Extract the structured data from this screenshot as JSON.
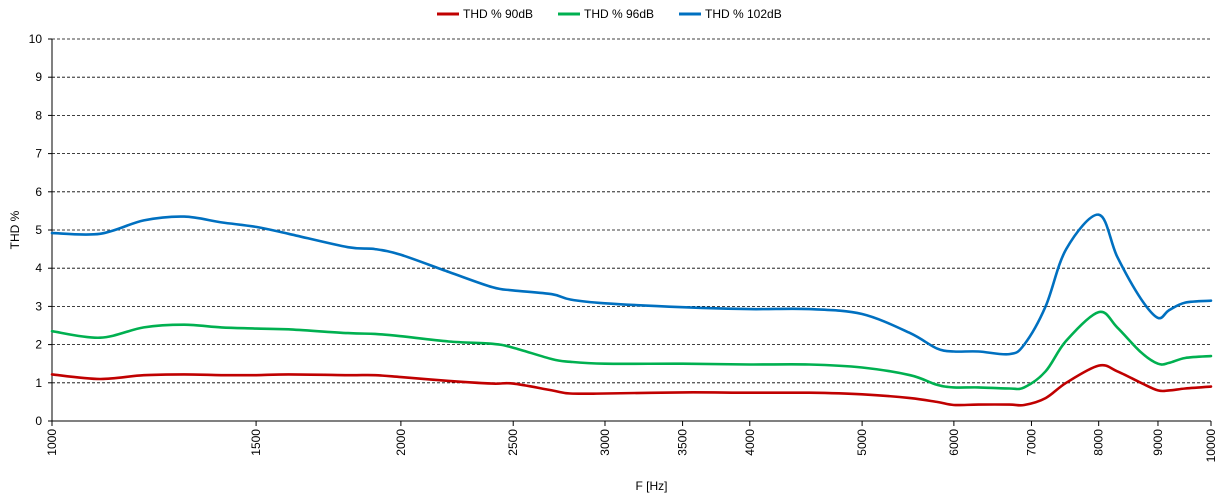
{
  "chart_data": {
    "type": "line",
    "xlabel": "F [Hz]",
    "ylabel": "THD %",
    "x_scale": "log",
    "xlim": [
      1000,
      10000
    ],
    "ylim": [
      0,
      10
    ],
    "grid": true,
    "legend_position": "top-center",
    "x_ticks": [
      1000,
      1500,
      2000,
      2500,
      3000,
      3500,
      4000,
      5000,
      6000,
      7000,
      8000,
      9000,
      10000
    ],
    "y_ticks": [
      0,
      1,
      2,
      3,
      4,
      5,
      6,
      7,
      8,
      9,
      10
    ],
    "series": [
      {
        "name": "THD % 90dB",
        "color": "#c00000",
        "x": [
          1000,
          1100,
          1200,
          1300,
          1400,
          1500,
          1600,
          1800,
          1900,
          2000,
          2200,
          2400,
          2500,
          2700,
          2800,
          3000,
          3500,
          4000,
          4500,
          5000,
          5500,
          5800,
          6000,
          6300,
          6700,
          6900,
          7200,
          7500,
          8000,
          8300,
          8700,
          9000,
          9200,
          9500,
          10000
        ],
        "y": [
          1.22,
          1.1,
          1.2,
          1.22,
          1.2,
          1.2,
          1.22,
          1.2,
          1.2,
          1.15,
          1.05,
          0.98,
          0.98,
          0.8,
          0.72,
          0.72,
          0.75,
          0.74,
          0.74,
          0.7,
          0.6,
          0.5,
          0.42,
          0.43,
          0.43,
          0.42,
          0.6,
          1.0,
          1.45,
          1.3,
          1.0,
          0.8,
          0.8,
          0.85,
          0.9
        ]
      },
      {
        "name": "THD % 96dB",
        "color": "#00b050",
        "x": [
          1000,
          1100,
          1200,
          1300,
          1400,
          1500,
          1600,
          1800,
          1900,
          2000,
          2200,
          2400,
          2500,
          2700,
          2800,
          3000,
          3500,
          4000,
          4500,
          5000,
          5500,
          5800,
          6000,
          6300,
          6700,
          6900,
          7200,
          7500,
          8000,
          8300,
          8700,
          9000,
          9200,
          9500,
          10000
        ],
        "y": [
          2.35,
          2.18,
          2.45,
          2.52,
          2.45,
          2.42,
          2.4,
          2.3,
          2.28,
          2.22,
          2.08,
          2.02,
          1.92,
          1.62,
          1.55,
          1.5,
          1.5,
          1.48,
          1.48,
          1.4,
          1.2,
          0.95,
          0.88,
          0.88,
          0.85,
          0.88,
          1.3,
          2.1,
          2.85,
          2.45,
          1.8,
          1.5,
          1.52,
          1.65,
          1.7
        ]
      },
      {
        "name": "THD % 102dB",
        "color": "#0070c0",
        "x": [
          1000,
          1100,
          1200,
          1300,
          1400,
          1500,
          1600,
          1800,
          1900,
          2000,
          2200,
          2400,
          2500,
          2700,
          2800,
          3000,
          3500,
          4000,
          4500,
          5000,
          5500,
          5800,
          6000,
          6300,
          6700,
          6900,
          7200,
          7500,
          8000,
          8300,
          8700,
          9000,
          9200,
          9500,
          10000
        ],
        "y": [
          4.92,
          4.9,
          5.25,
          5.35,
          5.2,
          5.08,
          4.9,
          4.55,
          4.5,
          4.35,
          3.9,
          3.5,
          3.42,
          3.32,
          3.18,
          3.08,
          2.98,
          2.93,
          2.93,
          2.8,
          2.3,
          1.9,
          1.82,
          1.82,
          1.75,
          2.0,
          3.0,
          4.5,
          5.4,
          4.3,
          3.2,
          2.7,
          2.9,
          3.1,
          3.15
        ]
      }
    ]
  }
}
